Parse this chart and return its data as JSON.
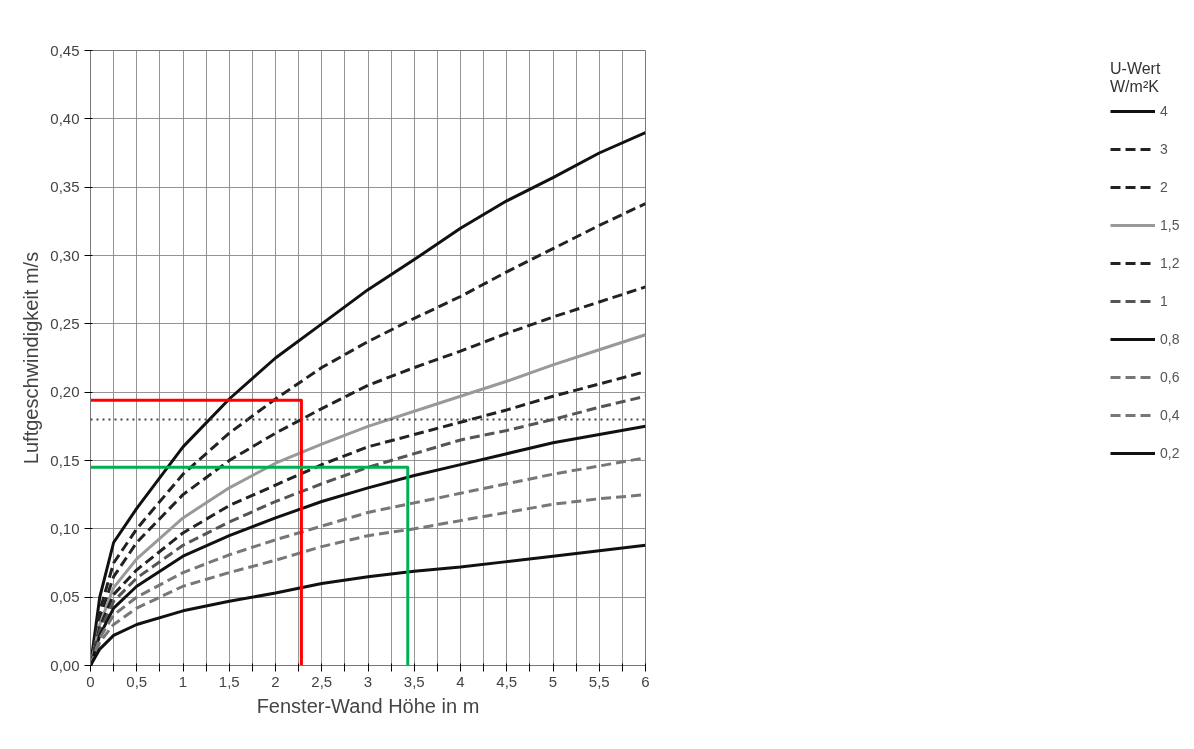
{
  "chart_data": {
    "type": "line",
    "xlabel": "Fenster-Wand Höhe in m",
    "ylabel": "Luftgeschwindigkeit m/s",
    "legend_title": "U-Wert\nW/m²K",
    "legend": "right",
    "grid": true,
    "x": [
      0,
      0.1,
      0.25,
      0.5,
      1,
      1.5,
      2,
      2.5,
      3,
      3.5,
      4,
      4.5,
      5,
      5.5,
      6
    ],
    "xlim": [
      0,
      6
    ],
    "ylim": [
      0,
      0.45
    ],
    "xticks": [
      {
        "value": 0,
        "label": "0"
      },
      {
        "value": 0.25,
        "label": null
      },
      {
        "value": 0.5,
        "label": "0,5"
      },
      {
        "value": 0.75,
        "label": null
      },
      {
        "value": 1,
        "label": "1"
      },
      {
        "value": 1.25,
        "label": null
      },
      {
        "value": 1.5,
        "label": "1,5"
      },
      {
        "value": 1.75,
        "label": null
      },
      {
        "value": 2,
        "label": "2"
      },
      {
        "value": 2.25,
        "label": null
      },
      {
        "value": 2.5,
        "label": "2,5"
      },
      {
        "value": 2.75,
        "label": null
      },
      {
        "value": 3,
        "label": "3"
      },
      {
        "value": 3.25,
        "label": null
      },
      {
        "value": 3.5,
        "label": "3,5"
      },
      {
        "value": 3.75,
        "label": null
      },
      {
        "value": 4,
        "label": "4"
      },
      {
        "value": 4.25,
        "label": null
      },
      {
        "value": 4.5,
        "label": "4,5"
      },
      {
        "value": 4.75,
        "label": null
      },
      {
        "value": 5,
        "label": "5"
      },
      {
        "value": 5.25,
        "label": null
      },
      {
        "value": 5.5,
        "label": "5,5"
      },
      {
        "value": 5.75,
        "label": null
      },
      {
        "value": 6,
        "label": "6"
      }
    ],
    "yticks": [
      {
        "value": 0,
        "label": "0,00"
      },
      {
        "value": 0.05,
        "label": "0,05"
      },
      {
        "value": 0.1,
        "label": "0,10"
      },
      {
        "value": 0.15,
        "label": "0,15"
      },
      {
        "value": 0.2,
        "label": "0,20"
      },
      {
        "value": 0.25,
        "label": "0,25"
      },
      {
        "value": 0.3,
        "label": "0,30"
      },
      {
        "value": 0.35,
        "label": "0,35"
      },
      {
        "value": 0.4,
        "label": "0,40"
      },
      {
        "value": 0.45,
        "label": "0,45"
      }
    ],
    "ref_lines": [
      {
        "axis": "y",
        "value": 0.18,
        "color": "#444444",
        "line_style": "dotted"
      }
    ],
    "series": [
      {
        "name": "4",
        "color": "#111111",
        "line_style": "solid",
        "values": [
          0,
          0.05,
          0.09,
          0.115,
          0.16,
          0.195,
          0.225,
          0.25,
          0.275,
          0.297,
          0.32,
          0.34,
          0.357,
          0.375,
          0.39
        ]
      },
      {
        "name": "3",
        "color": "#222222",
        "line_style": "dashed",
        "values": [
          0,
          0.04,
          0.075,
          0.1,
          0.14,
          0.17,
          0.195,
          0.218,
          0.237,
          0.254,
          0.27,
          0.288,
          0.305,
          0.322,
          0.338
        ]
      },
      {
        "name": "2",
        "color": "#222222",
        "line_style": "dashed",
        "values": [
          0,
          0.035,
          0.065,
          0.09,
          0.125,
          0.15,
          0.17,
          0.188,
          0.205,
          0.218,
          0.23,
          0.243,
          0.255,
          0.266,
          0.277
        ]
      },
      {
        "name": "1,5",
        "color": "#999999",
        "line_style": "solid",
        "values": [
          0,
          0.03,
          0.057,
          0.078,
          0.108,
          0.13,
          0.148,
          0.162,
          0.175,
          0.186,
          0.197,
          0.208,
          0.22,
          0.231,
          0.242
        ]
      },
      {
        "name": "1,2",
        "color": "#222222",
        "line_style": "dashed",
        "values": [
          0,
          0.028,
          0.052,
          0.07,
          0.097,
          0.117,
          0.132,
          0.147,
          0.16,
          0.169,
          0.178,
          0.187,
          0.197,
          0.206,
          0.215
        ]
      },
      {
        "name": "1",
        "color": "#555555",
        "line_style": "dashed",
        "values": [
          0,
          0.025,
          0.047,
          0.064,
          0.088,
          0.105,
          0.12,
          0.133,
          0.145,
          0.155,
          0.165,
          0.172,
          0.18,
          0.189,
          0.197
        ]
      },
      {
        "name": "0,8",
        "color": "#111111",
        "line_style": "solid",
        "values": [
          0,
          0.022,
          0.042,
          0.058,
          0.08,
          0.095,
          0.108,
          0.12,
          0.13,
          0.139,
          0.147,
          0.155,
          0.163,
          0.169,
          0.175
        ]
      },
      {
        "name": "0,6",
        "color": "#777777",
        "line_style": "dashed",
        "values": [
          0,
          0.02,
          0.037,
          0.05,
          0.068,
          0.081,
          0.092,
          0.102,
          0.112,
          0.119,
          0.126,
          0.133,
          0.14,
          0.146,
          0.152
        ]
      },
      {
        "name": "0,4",
        "color": "#777777",
        "line_style": "dashed",
        "values": [
          0,
          0.017,
          0.03,
          0.042,
          0.058,
          0.068,
          0.077,
          0.087,
          0.095,
          0.1,
          0.106,
          0.112,
          0.118,
          0.122,
          0.125
        ]
      },
      {
        "name": "0,2",
        "color": "#111111",
        "line_style": "solid",
        "values": [
          0,
          0.012,
          0.022,
          0.03,
          0.04,
          0.047,
          0.053,
          0.06,
          0.065,
          0.069,
          0.072,
          0.076,
          0.08,
          0.084,
          0.088
        ]
      },
      {
        "color": "#ff0000",
        "line_style": "solid",
        "x": [
          0,
          2.28,
          2.28
        ],
        "values": [
          0.194,
          0.194,
          0
        ]
      },
      {
        "color": "#00b050",
        "line_style": "solid",
        "x": [
          0,
          3.43,
          3.43
        ],
        "values": [
          0.145,
          0.145,
          0
        ]
      }
    ]
  }
}
